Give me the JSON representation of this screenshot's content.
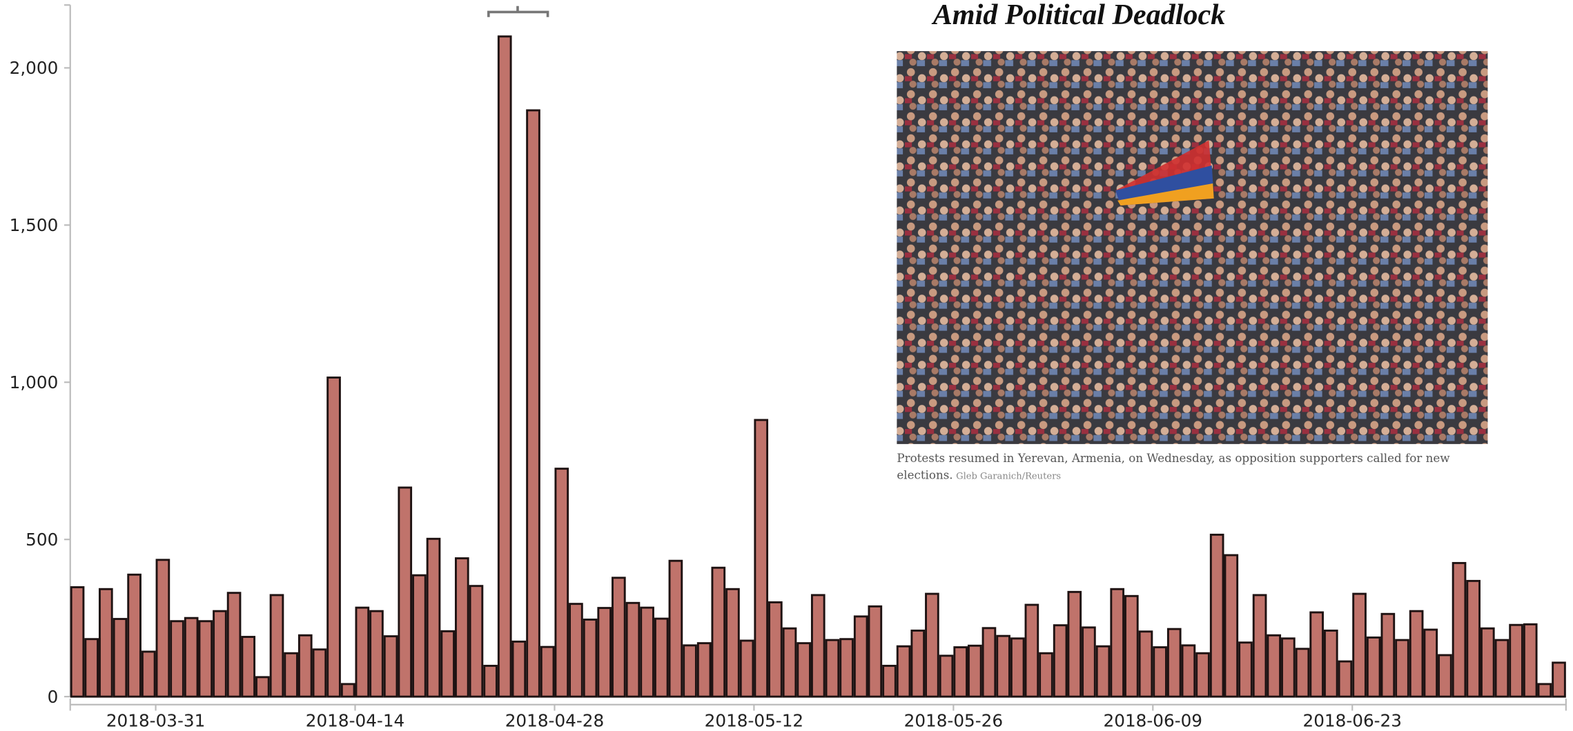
{
  "chart_data": {
    "type": "bar",
    "x": [
      "2018-03-25",
      "2018-03-26",
      "2018-03-27",
      "2018-03-28",
      "2018-03-29",
      "2018-03-30",
      "2018-03-31",
      "2018-04-01",
      "2018-04-02",
      "2018-04-03",
      "2018-04-04",
      "2018-04-05",
      "2018-04-06",
      "2018-04-07",
      "2018-04-08",
      "2018-04-09",
      "2018-04-10",
      "2018-04-11",
      "2018-04-12",
      "2018-04-13",
      "2018-04-14",
      "2018-04-15",
      "2018-04-16",
      "2018-04-17",
      "2018-04-18",
      "2018-04-19",
      "2018-04-20",
      "2018-04-21",
      "2018-04-22",
      "2018-04-23",
      "2018-04-24",
      "2018-04-25",
      "2018-04-26",
      "2018-04-27",
      "2018-04-28",
      "2018-04-29",
      "2018-04-30",
      "2018-05-01",
      "2018-05-02",
      "2018-05-03",
      "2018-05-04",
      "2018-05-05",
      "2018-05-06",
      "2018-05-07",
      "2018-05-08",
      "2018-05-09",
      "2018-05-10",
      "2018-05-11",
      "2018-05-12",
      "2018-05-13",
      "2018-05-14",
      "2018-05-15",
      "2018-05-16",
      "2018-05-17",
      "2018-05-18",
      "2018-05-19",
      "2018-05-20",
      "2018-05-21",
      "2018-05-22",
      "2018-05-23",
      "2018-05-24",
      "2018-05-25",
      "2018-05-26",
      "2018-05-27",
      "2018-05-28",
      "2018-05-29",
      "2018-05-30",
      "2018-05-31",
      "2018-06-01",
      "2018-06-02",
      "2018-06-03",
      "2018-06-04",
      "2018-06-05",
      "2018-06-06",
      "2018-06-07",
      "2018-06-08",
      "2018-06-09",
      "2018-06-10",
      "2018-06-11",
      "2018-06-12",
      "2018-06-13",
      "2018-06-14",
      "2018-06-15",
      "2018-06-16",
      "2018-06-17",
      "2018-06-18",
      "2018-06-19",
      "2018-06-20",
      "2018-06-21",
      "2018-06-22",
      "2018-06-23",
      "2018-06-24",
      "2018-06-25",
      "2018-06-26",
      "2018-06-27",
      "2018-06-28",
      "2018-06-29",
      "2018-06-30",
      "2018-07-01",
      "2018-07-02",
      "2018-07-03",
      "2018-07-04",
      "2018-07-05",
      "2018-07-06",
      "2018-07-07"
    ],
    "values": [
      348,
      183,
      342,
      247,
      388,
      143,
      435,
      240,
      250,
      240,
      272,
      330,
      190,
      62,
      323,
      138,
      195,
      150,
      1015,
      40,
      283,
      272,
      192,
      665,
      386,
      502,
      208,
      440,
      352,
      98,
      2100,
      175,
      1865,
      158,
      725,
      295,
      245,
      282,
      378,
      298,
      283,
      248,
      432,
      163,
      170,
      410,
      342,
      178,
      880,
      300,
      217,
      170,
      323,
      180,
      183,
      255,
      287,
      98,
      160,
      210,
      327,
      130,
      157,
      162,
      218,
      193,
      185,
      292,
      138,
      227,
      333,
      220,
      160,
      342,
      320,
      207,
      157,
      215,
      163,
      138,
      515,
      450,
      172,
      323,
      195,
      185,
      152,
      268,
      210,
      112,
      327,
      188,
      263,
      180,
      272,
      213,
      132,
      425,
      368,
      217,
      180,
      228,
      230,
      40,
      108
    ],
    "color": "#c0736b",
    "xlim": [
      "2018-03-25",
      "2018-07-08"
    ],
    "xticks": [
      "2018-03-31",
      "2018-04-14",
      "2018-04-28",
      "2018-05-12",
      "2018-05-26",
      "2018-06-09",
      "2018-06-23"
    ],
    "ylim": [
      0,
      2200
    ],
    "yticks": [
      0,
      {
        "value": 500,
        "label": "500"
      },
      {
        "value": 1000,
        "label": "1,000"
      },
      {
        "value": 1500,
        "label": "1,500"
      },
      {
        "value": 2000,
        "label": "2,000"
      }
    ]
  },
  "overlay": {
    "title": "Amid Political Deadlock",
    "caption": [
      "Protests resumed in Yerevan, Armenia, on Wednesday, as opposition supporters called for new",
      "elections."
    ],
    "credit": "Gleb Garanich/Reuters"
  }
}
